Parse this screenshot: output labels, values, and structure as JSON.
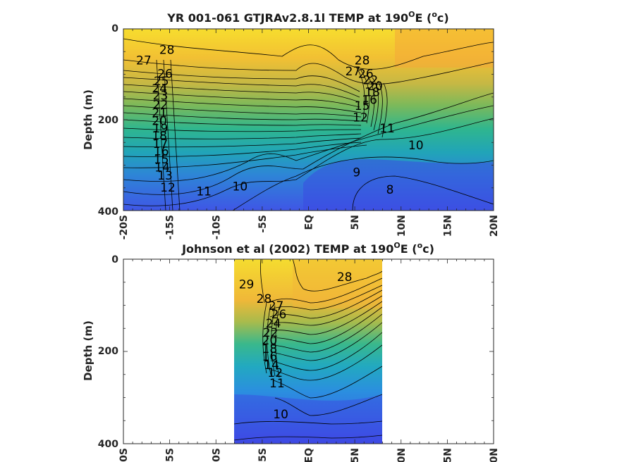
{
  "chart_data": [
    {
      "type": "contour",
      "title": "YR 001-061 GTJRAv2.8.1l TEMP at 190",
      "title_sup_deg": "O",
      "title_unit_open": "E (",
      "title_unit_sup": "o",
      "title_unit_close": "c)",
      "ylabel": "Depth (m)",
      "xlim": [
        -20,
        20
      ],
      "ylim": [
        0,
        400
      ],
      "y_reversed": true,
      "xticks": [
        "-20S",
        "-15S",
        "-10S",
        "-5S",
        "EQ",
        "5N",
        "10N",
        "15N",
        "20N"
      ],
      "yticks": [
        "0",
        "200",
        "400"
      ],
      "contour_interval": 1,
      "contour_labels": [
        {
          "text": "28",
          "x": -15.3,
          "y": 55
        },
        {
          "text": "27",
          "x": -17.8,
          "y": 78
        },
        {
          "text": "26",
          "x": -15.5,
          "y": 108
        },
        {
          "text": "25",
          "x": -15.9,
          "y": 124
        },
        {
          "text": "24",
          "x": -16.1,
          "y": 140
        },
        {
          "text": "23",
          "x": -16.0,
          "y": 156
        },
        {
          "text": "22",
          "x": -16.0,
          "y": 176
        },
        {
          "text": "21",
          "x": -16.1,
          "y": 194
        },
        {
          "text": "20",
          "x": -16.1,
          "y": 212
        },
        {
          "text": "19",
          "x": -16.0,
          "y": 228
        },
        {
          "text": "18",
          "x": -16.1,
          "y": 244
        },
        {
          "text": "17",
          "x": -16.0,
          "y": 262
        },
        {
          "text": "16",
          "x": -15.9,
          "y": 278
        },
        {
          "text": "15",
          "x": -15.9,
          "y": 296
        },
        {
          "text": "14",
          "x": -15.8,
          "y": 314
        },
        {
          "text": "13",
          "x": -15.5,
          "y": 332
        },
        {
          "text": "12",
          "x": -15.2,
          "y": 358
        },
        {
          "text": "11",
          "x": -11.3,
          "y": 367
        },
        {
          "text": "10",
          "x": -7.4,
          "y": 356
        },
        {
          "text": "9",
          "x": 5.2,
          "y": 325
        },
        {
          "text": "8",
          "x": 8.8,
          "y": 363
        },
        {
          "text": "10",
          "x": 11.6,
          "y": 265
        },
        {
          "text": "11",
          "x": 8.5,
          "y": 228
        },
        {
          "text": "12",
          "x": 5.6,
          "y": 204
        },
        {
          "text": "28",
          "x": 5.8,
          "y": 78
        },
        {
          "text": "27",
          "x": 4.8,
          "y": 102
        },
        {
          "text": "26",
          "x": 6.2,
          "y": 108
        },
        {
          "text": "15",
          "x": 5.8,
          "y": 178
        },
        {
          "text": "16",
          "x": 6.6,
          "y": 165
        },
        {
          "text": "18",
          "x": 6.9,
          "y": 148
        },
        {
          "text": "20",
          "x": 7.2,
          "y": 135
        },
        {
          "text": "22",
          "x": 6.7,
          "y": 122
        }
      ]
    },
    {
      "type": "contour",
      "title": "Johnson et al (2002) TEMP at 190",
      "title_sup_deg": "O",
      "title_unit_open": "E (",
      "title_unit_sup": "o",
      "title_unit_close": "c)",
      "ylabel": "Depth (m)",
      "xlim": [
        -20,
        20
      ],
      "ylim": [
        0,
        400
      ],
      "y_reversed": true,
      "data_xrange": [
        -8,
        8
      ],
      "xticks": [
        "-20S",
        "-15S",
        "-10S",
        "-5S",
        "EQ",
        "5N",
        "10N",
        "15N",
        "20N"
      ],
      "yticks": [
        "0",
        "200",
        "400"
      ],
      "contour_interval": 1,
      "contour_labels": [
        {
          "text": "29",
          "x": -6.7,
          "y": 63
        },
        {
          "text": "28",
          "x": -4.8,
          "y": 95
        },
        {
          "text": "28",
          "x": 3.9,
          "y": 47
        },
        {
          "text": "27",
          "x": -3.5,
          "y": 110
        },
        {
          "text": "26",
          "x": -3.2,
          "y": 128
        },
        {
          "text": "24",
          "x": -3.8,
          "y": 148
        },
        {
          "text": "22",
          "x": -4.1,
          "y": 168
        },
        {
          "text": "20",
          "x": -4.2,
          "y": 185
        },
        {
          "text": "18",
          "x": -4.2,
          "y": 203
        },
        {
          "text": "16",
          "x": -4.2,
          "y": 220
        },
        {
          "text": "14",
          "x": -4.0,
          "y": 238
        },
        {
          "text": "12",
          "x": -3.6,
          "y": 255
        },
        {
          "text": "11",
          "x": -3.4,
          "y": 278
        },
        {
          "text": "10",
          "x": -3.0,
          "y": 345
        }
      ]
    }
  ]
}
